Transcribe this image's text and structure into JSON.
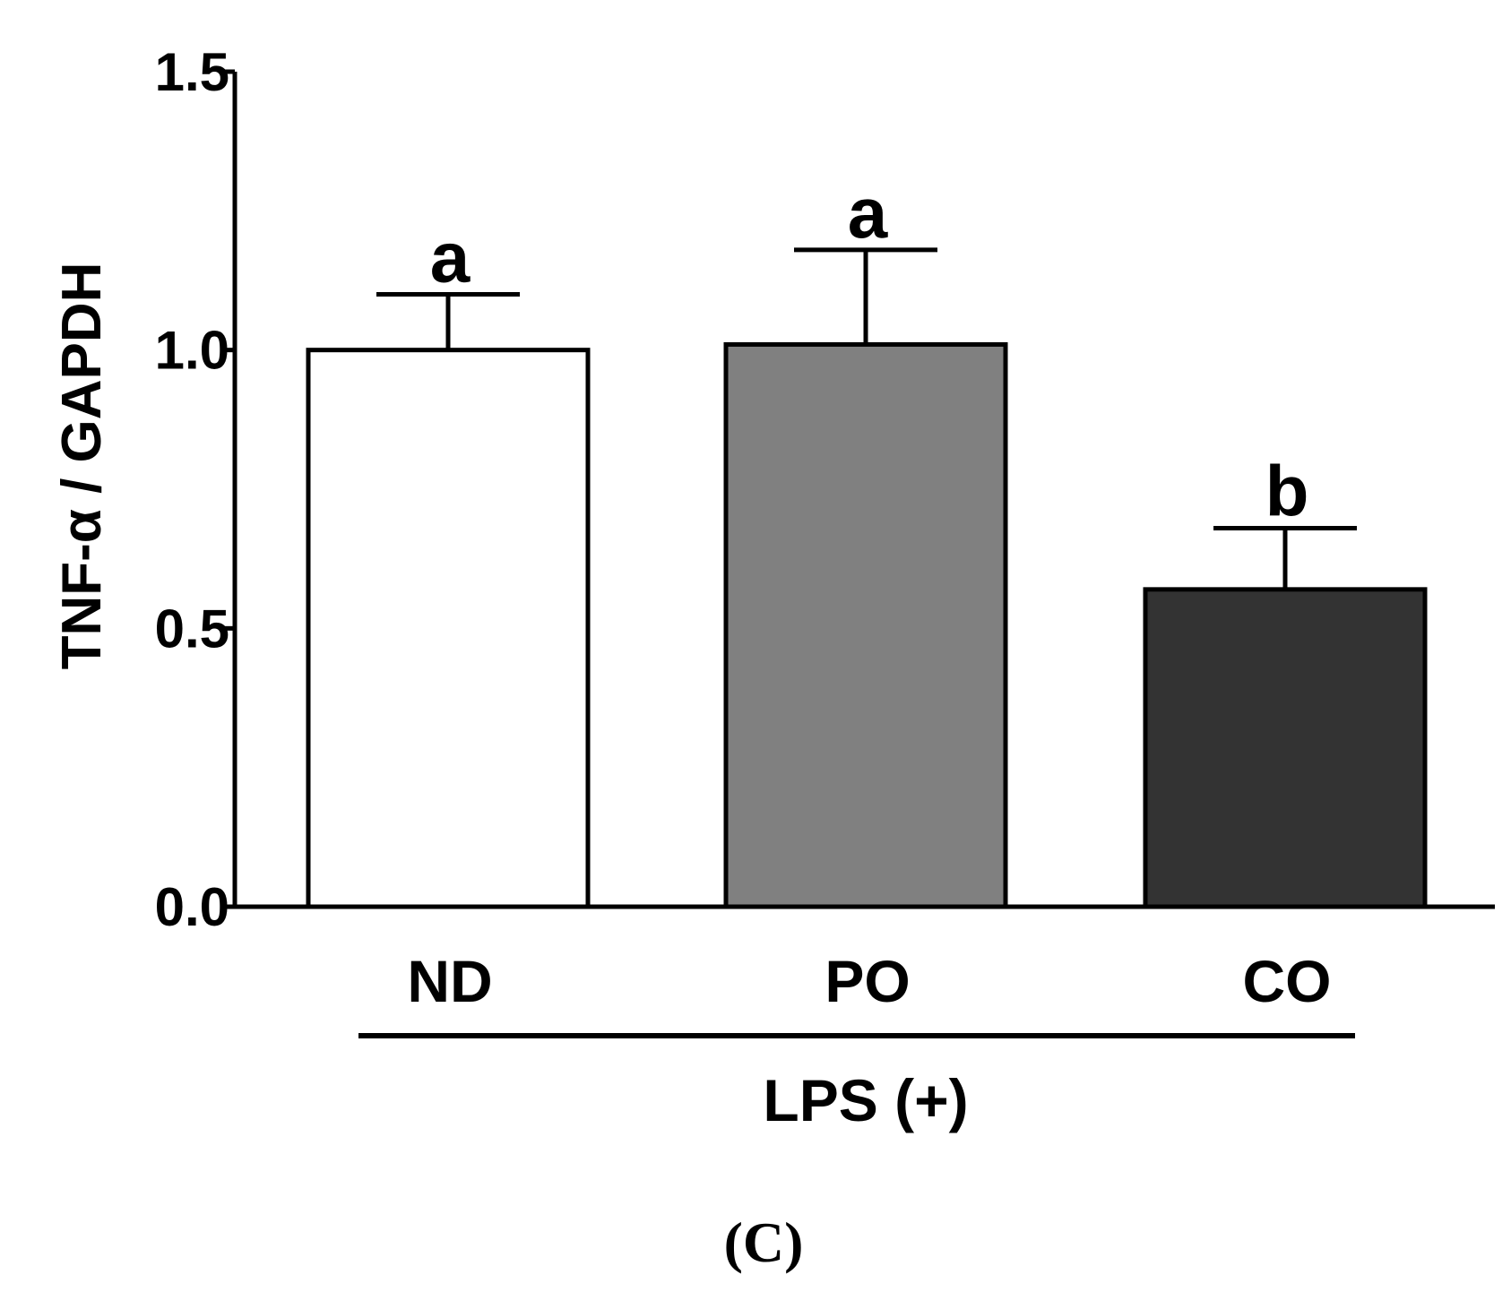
{
  "chart_data": {
    "type": "bar",
    "title": "",
    "ylabel": "TNF-α / GAPDH",
    "xlabel": "",
    "ylim": [
      0,
      1.5
    ],
    "yticks": [
      0.0,
      0.5,
      1.0,
      1.5
    ],
    "ytick_labels": [
      "0.0",
      "0.5",
      "1.0",
      "1.5"
    ],
    "categories": [
      "ND",
      "PO",
      "CO"
    ],
    "values": [
      1.0,
      1.01,
      0.57
    ],
    "errors": [
      0.1,
      0.17,
      0.11
    ],
    "significance": [
      "a",
      "a",
      "b"
    ],
    "colors": [
      "#ffffff",
      "#808080",
      "#333333"
    ],
    "group_label": "LPS (+)",
    "panel_label": "(C)"
  }
}
